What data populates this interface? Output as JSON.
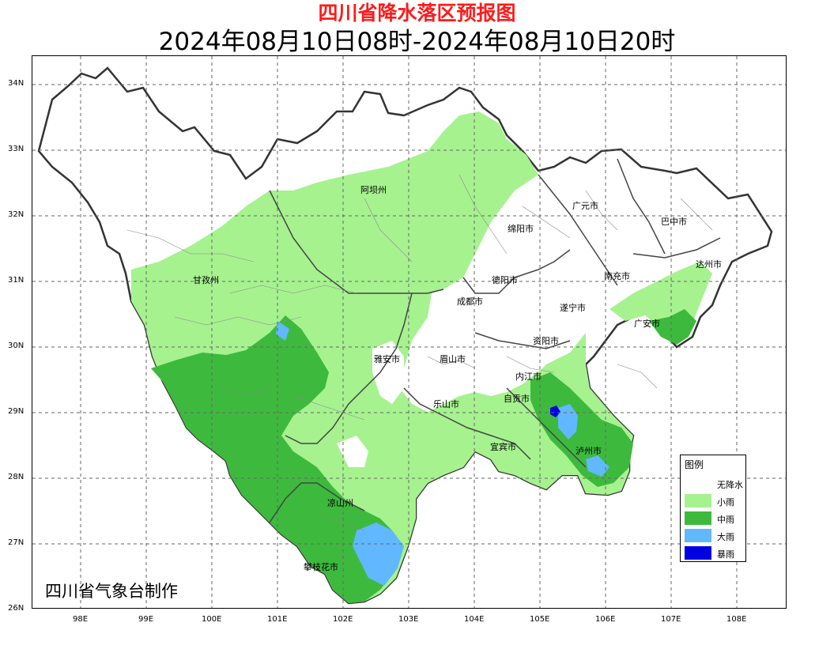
{
  "header": {
    "title": "四川省降水落区预报图",
    "subtitle": "2024年08月10日08时-2024年08月10日20时"
  },
  "axes": {
    "lat_labels": [
      "34N",
      "33N",
      "32N",
      "31N",
      "30N",
      "29N",
      "28N",
      "27N",
      "26N"
    ],
    "lon_labels": [
      "98E",
      "99E",
      "100E",
      "101E",
      "102E",
      "103E",
      "104E",
      "105E",
      "106E",
      "107E",
      "108E"
    ]
  },
  "cities": [
    {
      "name": "阿坝州"
    },
    {
      "name": "广元市"
    },
    {
      "name": "巴中市"
    },
    {
      "name": "绵阳市"
    },
    {
      "name": "甘孜州"
    },
    {
      "name": "德阳市"
    },
    {
      "name": "南充市"
    },
    {
      "name": "达州市"
    },
    {
      "name": "成都市"
    },
    {
      "name": "遂宁市"
    },
    {
      "name": "广安市"
    },
    {
      "name": "雅安市"
    },
    {
      "name": "眉山市"
    },
    {
      "name": "资阳市"
    },
    {
      "name": "内江市"
    },
    {
      "name": "自贡市"
    },
    {
      "name": "乐山市"
    },
    {
      "name": "宜宾市"
    },
    {
      "name": "泸州市"
    },
    {
      "name": "凉山州"
    },
    {
      "name": "攀枝花市"
    }
  ],
  "legend": {
    "title": "图例",
    "items": [
      {
        "label": "无降水",
        "color": "#ffffff"
      },
      {
        "label": "小雨",
        "color": "#a6f28f"
      },
      {
        "label": "中雨",
        "color": "#3dba3d"
      },
      {
        "label": "大雨",
        "color": "#61b8ff"
      },
      {
        "label": "暴雨",
        "color": "#0000e1"
      }
    ]
  },
  "credit": "四川省气象台制作"
}
